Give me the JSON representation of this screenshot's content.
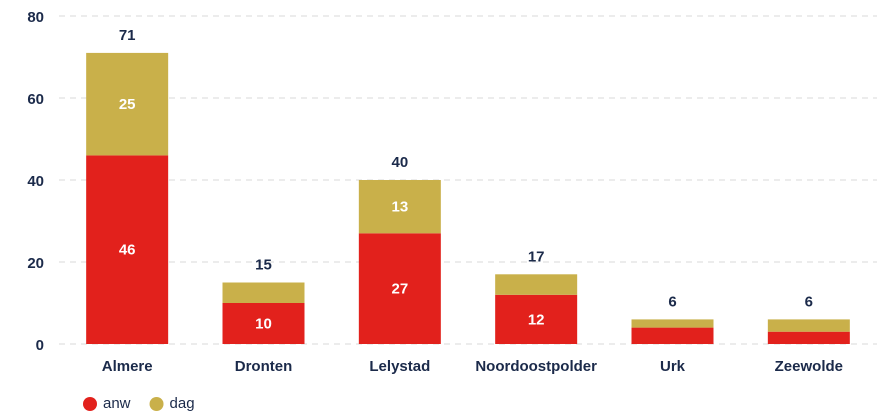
{
  "chart_data": {
    "type": "stacked_bar",
    "categories": [
      "Almere",
      "Dronten",
      "Lelystad",
      "Noordoostpolder",
      "Urk",
      "Zeewolde"
    ],
    "series": [
      {
        "name": "anw",
        "color": "#e2211c",
        "values": [
          46,
          10,
          27,
          12,
          4,
          3
        ],
        "value_labels": [
          "46",
          "10",
          "27",
          "12",
          null,
          null
        ]
      },
      {
        "name": "dag",
        "color": "#c9b04a",
        "values": [
          25,
          5,
          13,
          5,
          2,
          3
        ],
        "value_labels": [
          "25",
          null,
          "13",
          null,
          null,
          null
        ]
      }
    ],
    "totals": [
      71,
      15,
      40,
      17,
      6,
      6
    ],
    "ylim": [
      0,
      80
    ],
    "yticks": [
      0,
      20,
      40,
      60,
      80
    ],
    "grid": true,
    "legend": "bottom-left"
  }
}
